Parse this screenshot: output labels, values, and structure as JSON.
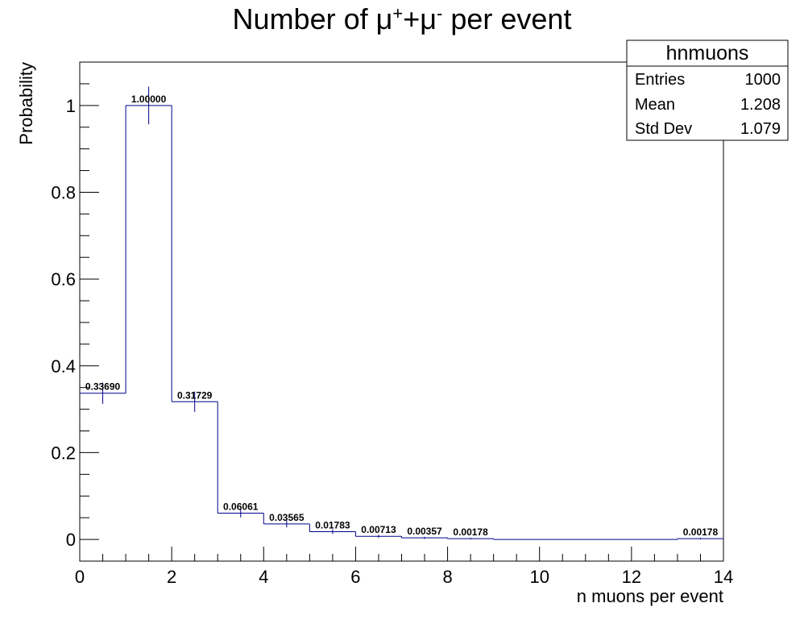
{
  "chart_data": {
    "type": "bar",
    "title": {
      "prefix": "Number of ",
      "mu": "μ",
      "plus": "+",
      "plus_sign": "+",
      "minus": "-",
      "suffix": " per event"
    },
    "xlabel": "n muons per event",
    "ylabel": "Probability",
    "xlim": [
      0,
      14
    ],
    "ylim": [
      -0.05,
      1.1
    ],
    "x_ticks": [
      0,
      2,
      4,
      6,
      8,
      10,
      12,
      14
    ],
    "x_tick_labels": [
      "0",
      "2",
      "4",
      "6",
      "8",
      "10",
      "12",
      "14"
    ],
    "y_ticks": [
      0,
      0.2,
      0.4,
      0.6,
      0.8,
      1
    ],
    "y_tick_labels": [
      "0",
      "0.2",
      "0.4",
      "0.6",
      "0.8",
      "1"
    ],
    "bin_edges": [
      0,
      1,
      2,
      3,
      4,
      5,
      6,
      7,
      8,
      9,
      10,
      11,
      12,
      13,
      14
    ],
    "values": [
      0.3369,
      1.0,
      0.31729,
      0.06061,
      0.03565,
      0.01783,
      0.00713,
      0.00357,
      0.00178,
      0,
      0,
      0,
      0,
      0.00178
    ],
    "errors": [
      0.0245,
      0.0435,
      0.0235,
      0.01,
      0.008,
      0.0055,
      0.0035,
      0.0025,
      0.0018,
      0,
      0,
      0,
      0,
      0.0018
    ],
    "labels": [
      "0.33690",
      "1.00000",
      "0.31729",
      "0.06061",
      "0.03565",
      "0.01783",
      "0.00713",
      "0.00357",
      "0.00178",
      "",
      "",
      "",
      "",
      "0.00178"
    ],
    "line_color": "#00008b",
    "grid": false,
    "stats_box": {
      "name": "hnmuons",
      "position": "top-right",
      "rows": [
        {
          "label": "Entries",
          "value": "1000"
        },
        {
          "label": "Mean",
          "value": "1.208"
        },
        {
          "label": "Std Dev",
          "value": "1.079"
        }
      ]
    }
  }
}
